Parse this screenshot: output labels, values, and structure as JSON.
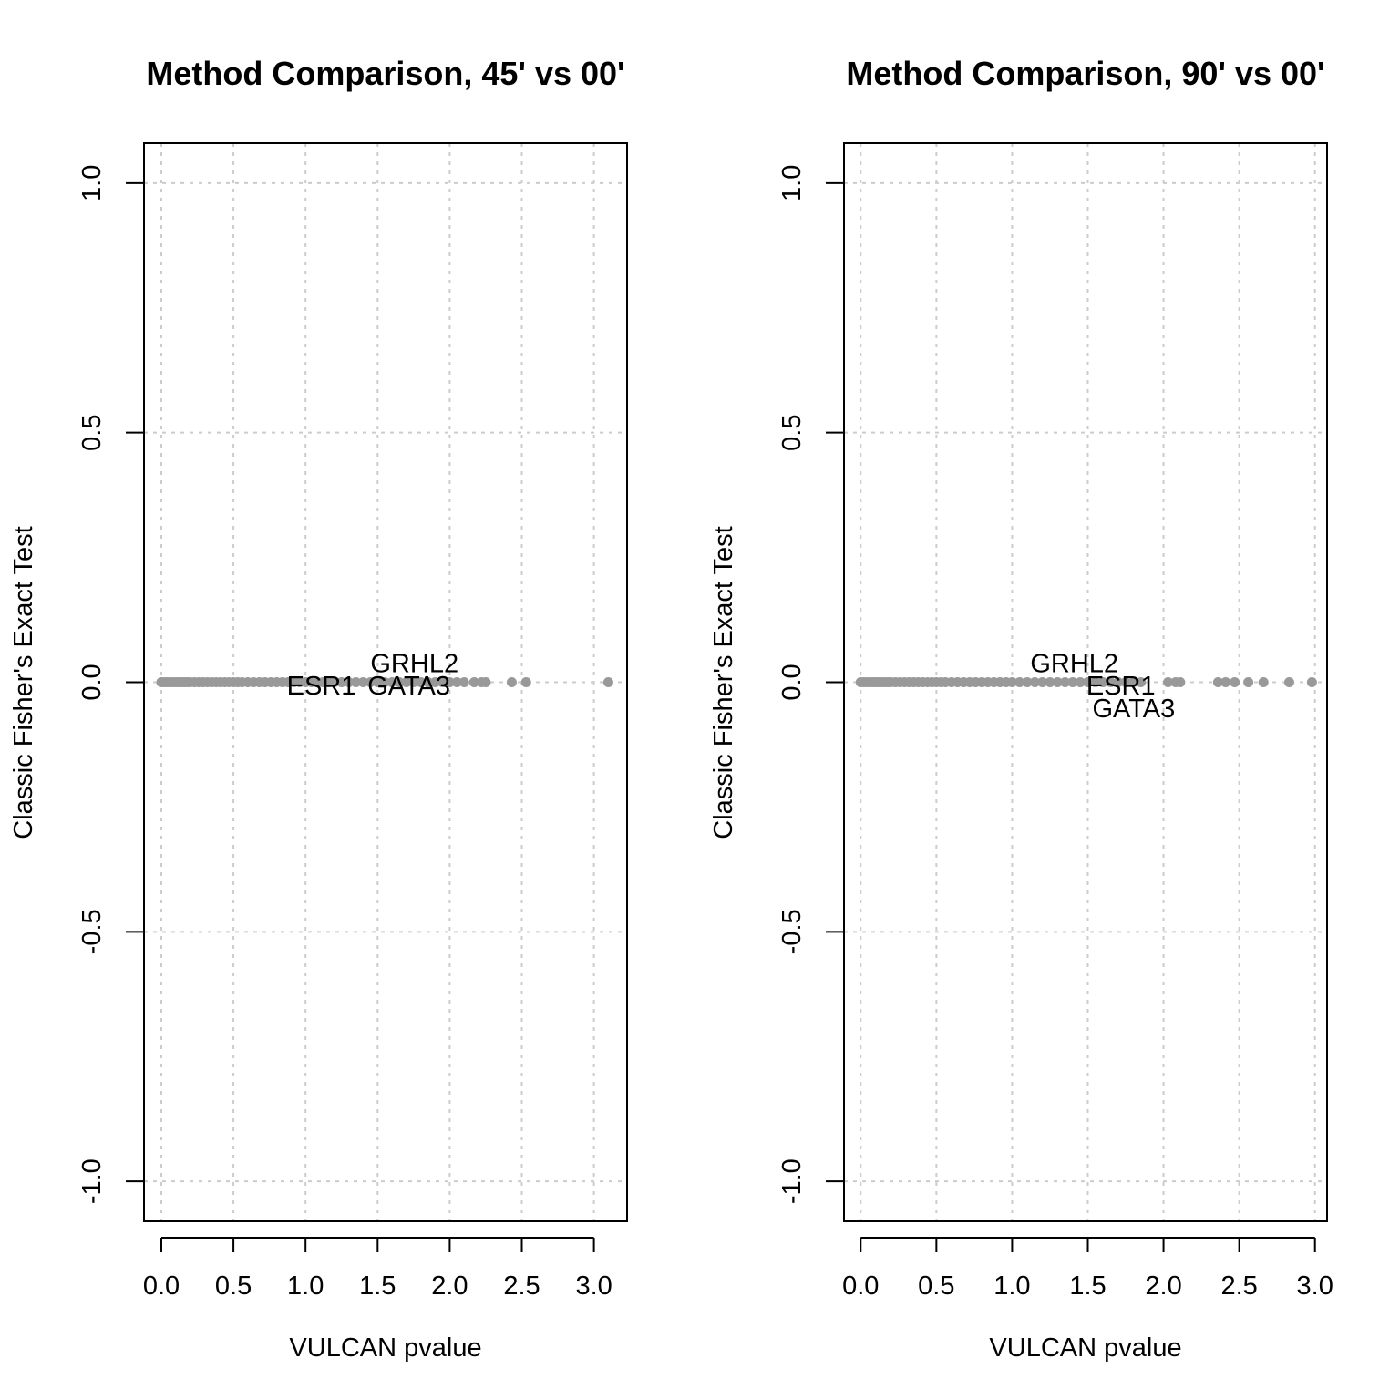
{
  "chart_data": [
    {
      "type": "scatter",
      "title": "Method Comparison, 45' vs 00'",
      "xlabel": "VULCAN pvalue",
      "ylabel": "Classic Fisher's Exact Test",
      "xlim": [
        -0.12,
        3.23
      ],
      "ylim": [
        -1.08,
        1.08
      ],
      "xticks": [
        0,
        0.5,
        1,
        1.5,
        2,
        2.5,
        3
      ],
      "xtick_labels": [
        "0.0",
        "0.5",
        "1.0",
        "1.5",
        "2.0",
        "2.5",
        "3.0"
      ],
      "yticks": [
        -1,
        -0.5,
        0,
        0.5,
        1
      ],
      "ytick_labels": [
        "-1.0",
        "-0.5",
        "0.0",
        "0.5",
        "1.0"
      ],
      "grid": true,
      "point_color": "#999999",
      "x": [
        0.0,
        0.02,
        0.04,
        0.06,
        0.08,
        0.1,
        0.12,
        0.14,
        0.16,
        0.18,
        0.2,
        0.23,
        0.26,
        0.29,
        0.32,
        0.35,
        0.38,
        0.41,
        0.44,
        0.47,
        0.5,
        0.53,
        0.56,
        0.6,
        0.64,
        0.68,
        0.72,
        0.76,
        0.8,
        0.84,
        0.88,
        0.92,
        0.96,
        1.0,
        1.04,
        1.08,
        1.12,
        1.16,
        1.2,
        1.25,
        1.3,
        1.35,
        1.4,
        1.45,
        1.5,
        1.55,
        1.6,
        1.65,
        1.7,
        1.75,
        1.8,
        1.85,
        1.9,
        1.95,
        2.0,
        2.05,
        2.1,
        2.17,
        2.22,
        2.25,
        2.43,
        2.53,
        3.1
      ],
      "y": [
        0,
        0,
        0,
        0,
        0,
        0,
        0,
        0,
        0,
        0,
        0,
        0,
        0,
        0,
        0,
        0,
        0,
        0,
        0,
        0,
        0,
        0,
        0,
        0,
        0,
        0,
        0,
        0,
        0,
        0,
        0,
        0,
        0,
        0,
        0,
        0,
        0,
        0,
        0,
        0,
        0,
        0,
        0,
        0,
        0,
        0,
        0,
        0,
        0,
        0,
        0,
        0,
        0,
        0,
        0,
        0,
        0,
        0,
        0,
        0,
        0,
        0,
        0
      ],
      "annotations": [
        {
          "text": "GRHL2",
          "x": 1.45,
          "y": 0.04
        },
        {
          "text": "ESR1",
          "x": 0.87,
          "y": -0.005
        },
        {
          "text": "GATA3",
          "x": 1.43,
          "y": -0.005
        }
      ]
    },
    {
      "type": "scatter",
      "title": "Method Comparison, 90' vs 00'",
      "xlabel": "VULCAN pvalue",
      "ylabel": "Classic Fisher's Exact Test",
      "xlim": [
        -0.11,
        3.08
      ],
      "ylim": [
        -1.08,
        1.08
      ],
      "xticks": [
        0,
        0.5,
        1,
        1.5,
        2,
        2.5,
        3
      ],
      "xtick_labels": [
        "0.0",
        "0.5",
        "1.0",
        "1.5",
        "2.0",
        "2.5",
        "3.0"
      ],
      "yticks": [
        -1,
        -0.5,
        0,
        0.5,
        1
      ],
      "ytick_labels": [
        "-1.0",
        "-0.5",
        "0.0",
        "0.5",
        "1.0"
      ],
      "grid": true,
      "point_color": "#999999",
      "x": [
        0.0,
        0.02,
        0.04,
        0.06,
        0.08,
        0.1,
        0.12,
        0.14,
        0.16,
        0.18,
        0.2,
        0.23,
        0.26,
        0.29,
        0.32,
        0.35,
        0.38,
        0.41,
        0.44,
        0.47,
        0.5,
        0.53,
        0.56,
        0.6,
        0.64,
        0.68,
        0.72,
        0.76,
        0.8,
        0.84,
        0.88,
        0.92,
        0.96,
        1.0,
        1.05,
        1.1,
        1.15,
        1.2,
        1.25,
        1.3,
        1.35,
        1.4,
        1.45,
        1.5,
        1.55,
        1.6,
        1.65,
        1.7,
        1.75,
        1.8,
        1.85,
        2.03,
        2.08,
        2.11,
        2.36,
        2.41,
        2.47,
        2.56,
        2.66,
        2.83,
        2.98
      ],
      "y": [
        0,
        0,
        0,
        0,
        0,
        0,
        0,
        0,
        0,
        0,
        0,
        0,
        0,
        0,
        0,
        0,
        0,
        0,
        0,
        0,
        0,
        0,
        0,
        0,
        0,
        0,
        0,
        0,
        0,
        0,
        0,
        0,
        0,
        0,
        0,
        0,
        0,
        0,
        0,
        0,
        0,
        0,
        0,
        0,
        0,
        0,
        0,
        0,
        0,
        0,
        0,
        0,
        0,
        0,
        0,
        0,
        0,
        0,
        0,
        0,
        0
      ],
      "annotations": [
        {
          "text": "GRHL2",
          "x": 1.12,
          "y": 0.04
        },
        {
          "text": "ESR1",
          "x": 1.49,
          "y": -0.005
        },
        {
          "text": "GATA3",
          "x": 1.53,
          "y": -0.05
        }
      ]
    }
  ]
}
